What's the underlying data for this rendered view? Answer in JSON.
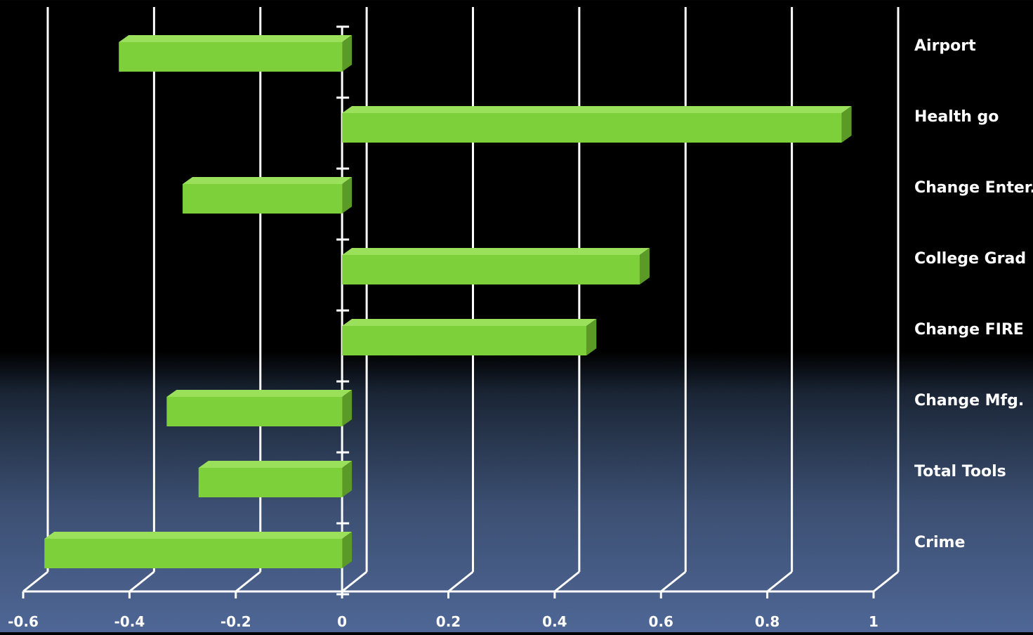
{
  "chart_data": {
    "type": "bar",
    "orientation": "horizontal",
    "style": "3d",
    "title": "",
    "xlabel": "",
    "ylabel": "",
    "categories": [
      "Airport",
      "Health go",
      "Change Enter.",
      "College Grad",
      "Change FIRE",
      "Change Mfg.",
      "Total Tools",
      "Crime"
    ],
    "values": [
      -0.42,
      0.94,
      -0.3,
      0.56,
      0.46,
      -0.33,
      -0.27,
      -0.56
    ],
    "xlim": [
      -0.6,
      1
    ],
    "xticks": [
      -0.6,
      -0.4,
      -0.2,
      0,
      0.2,
      0.4,
      0.6,
      0.8,
      1
    ],
    "xtick_labels": [
      "-0.6",
      "-0.4",
      "-0.2",
      "0",
      "0.2",
      "0.4",
      "0.6",
      "0.8",
      "1"
    ],
    "grid": true,
    "legend": "none",
    "colors": {
      "bar_front": "#7ed03a",
      "bar_top": "#9be05a",
      "bar_side": "#5c9a28",
      "axis": "#ffffff",
      "text": "#ffffff"
    }
  }
}
